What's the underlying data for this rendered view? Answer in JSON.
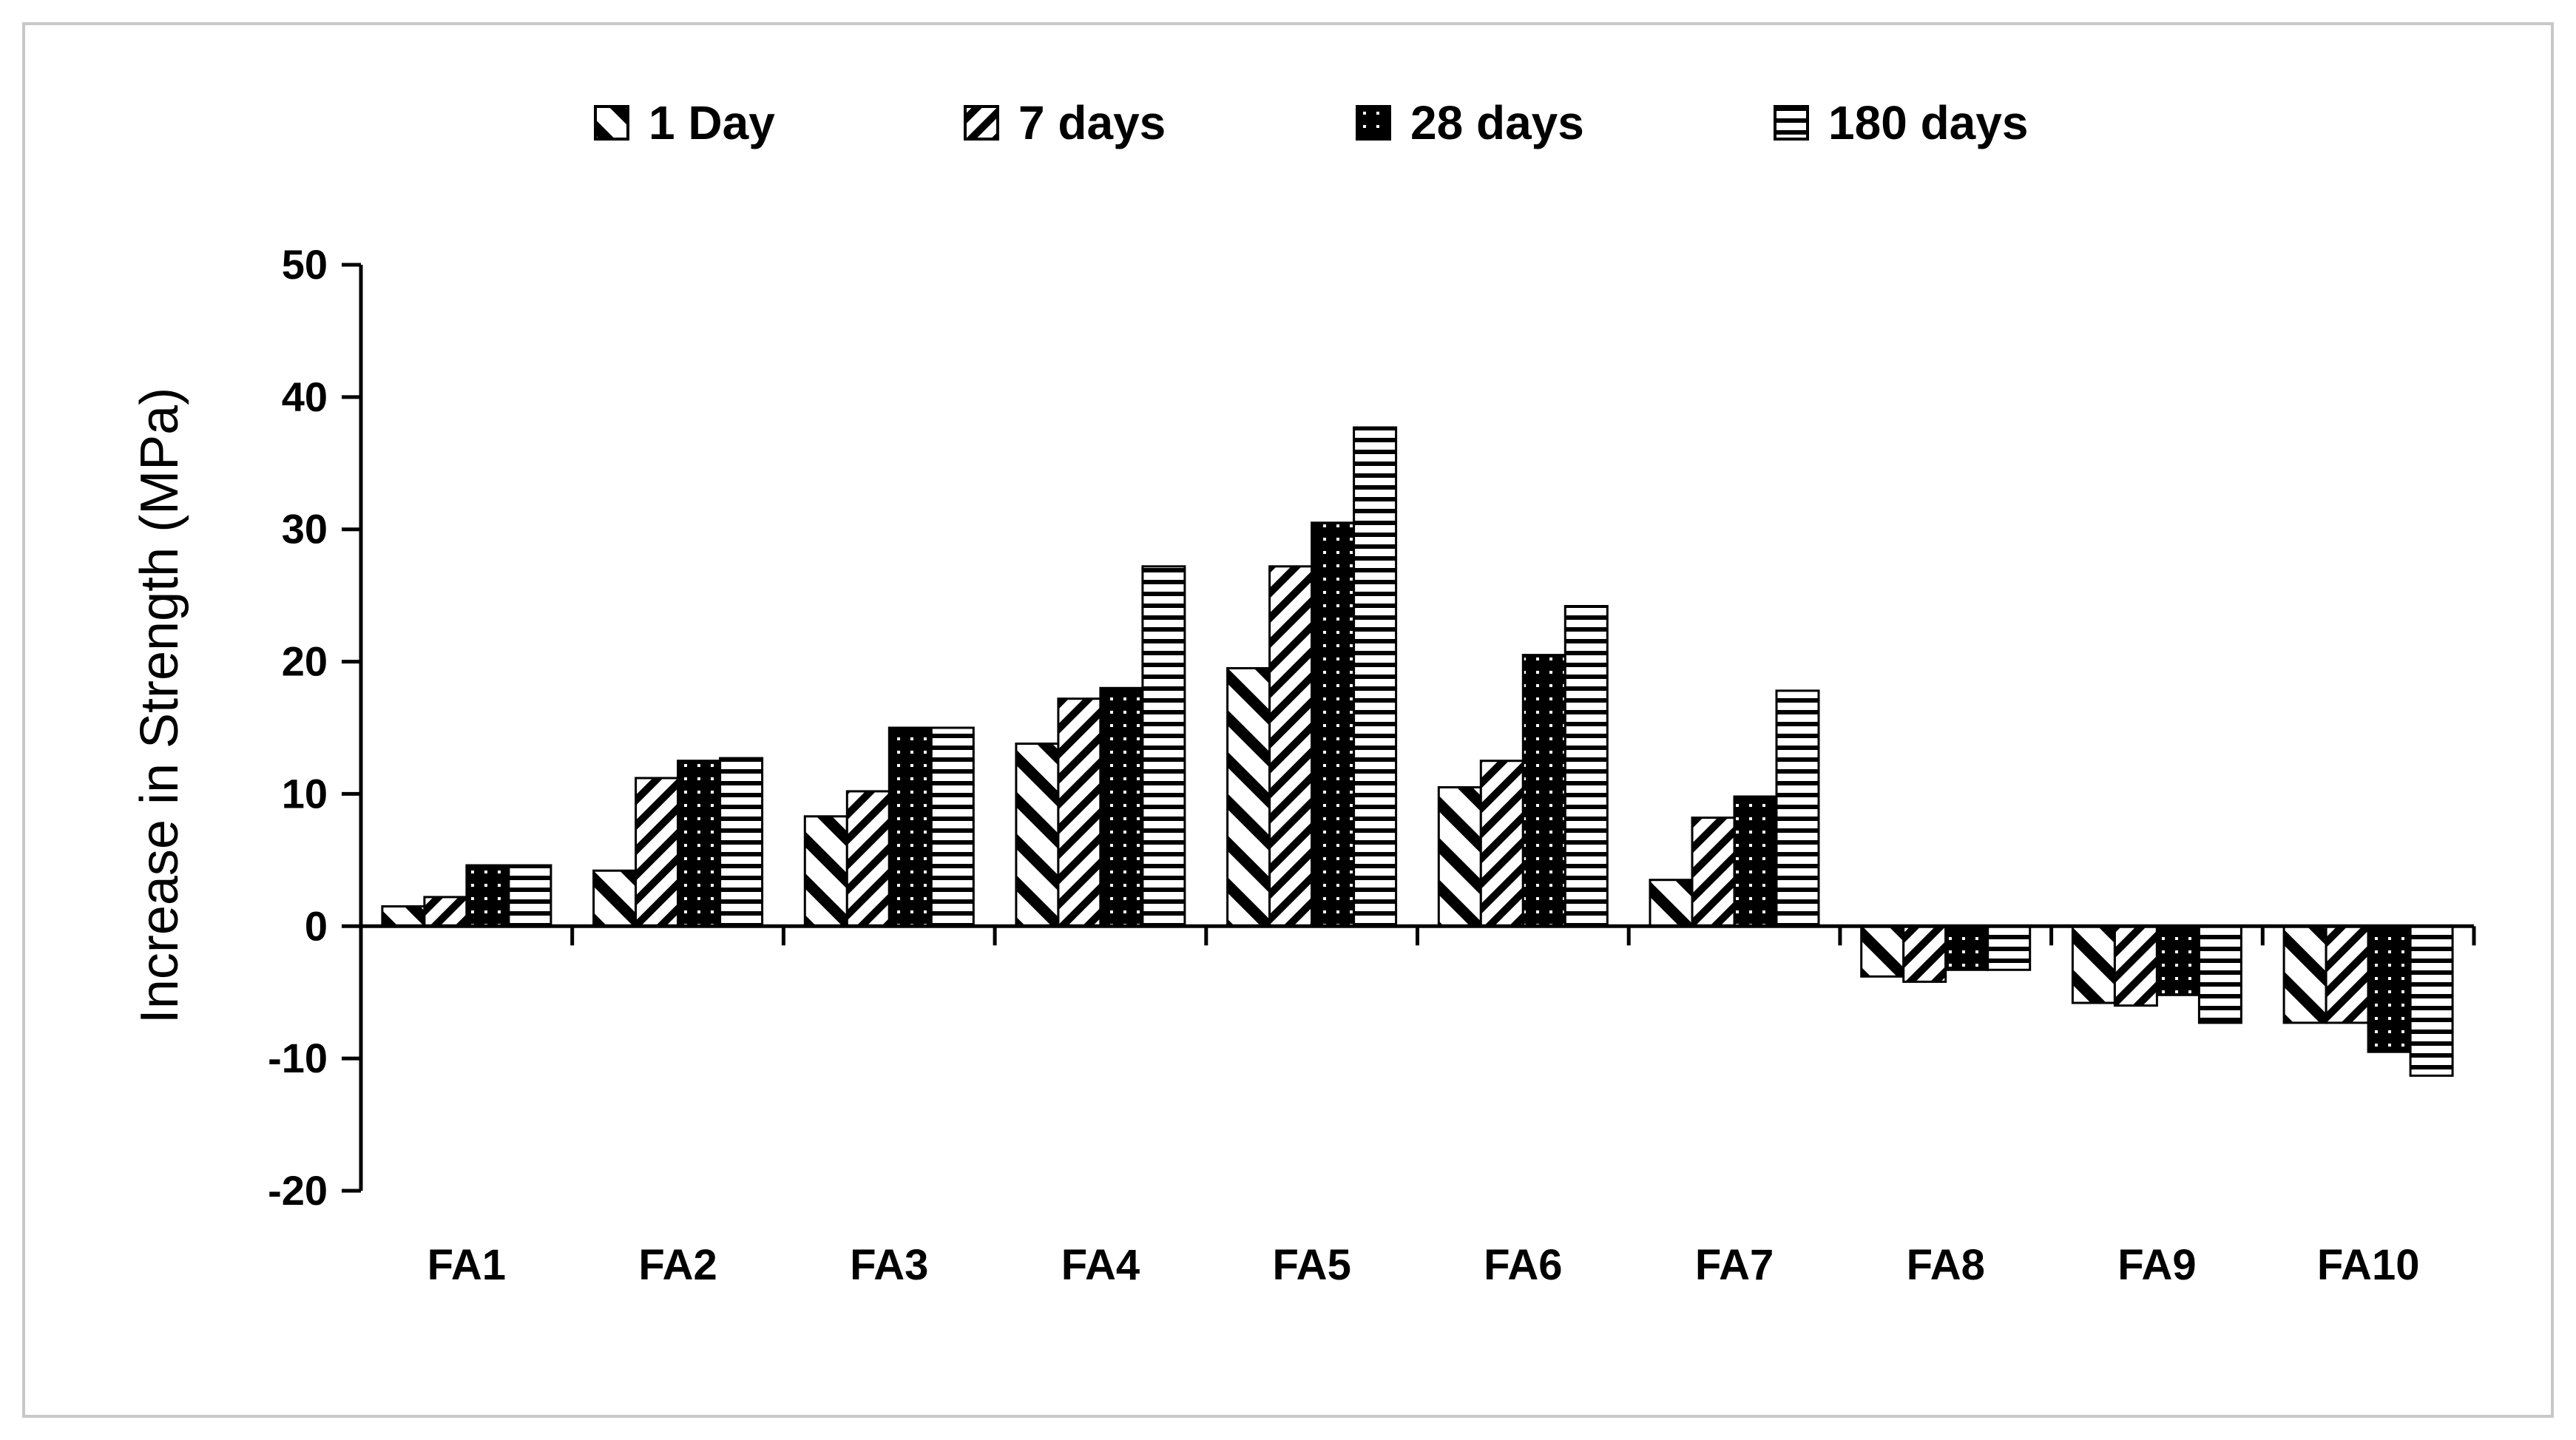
{
  "chart_data": {
    "type": "bar",
    "title": "",
    "xlabel": "",
    "ylabel": "Increase in Strength  (MPa)",
    "ylim": [
      -20,
      50
    ],
    "yticks": [
      50,
      40,
      30,
      20,
      10,
      0,
      -10,
      -20
    ],
    "ytick_labels": [
      "50",
      "40",
      "30",
      "20",
      "10",
      "0",
      "-10",
      "-20"
    ],
    "legend_position": "top",
    "grid": false,
    "categories": [
      "FA1",
      "FA2",
      "FA3",
      "FA4",
      "FA5",
      "FA6",
      "FA7",
      "FA8",
      "FA9",
      "FA10"
    ],
    "series": [
      {
        "name": "1 Day",
        "pattern": "backslash-hatch",
        "values": [
          1.5,
          4.2,
          8.3,
          13.8,
          19.5,
          10.5,
          3.5,
          -3.8,
          -5.8,
          -7.3
        ]
      },
      {
        "name": "7 days",
        "pattern": "slash-hatch",
        "values": [
          2.2,
          11.2,
          10.2,
          17.2,
          27.2,
          12.5,
          8.2,
          -4.2,
          -6.0,
          -7.3
        ]
      },
      {
        "name": "28 days",
        "pattern": "dotted-black",
        "values": [
          4.6,
          12.5,
          15.0,
          18.0,
          30.5,
          20.5,
          9.8,
          -3.3,
          -5.2,
          -9.5
        ]
      },
      {
        "name": "180 days",
        "pattern": "horizontal-lines",
        "values": [
          4.6,
          12.7,
          15.0,
          27.2,
          37.7,
          24.2,
          17.8,
          -3.3,
          -7.3,
          -11.3
        ]
      }
    ]
  },
  "colors": {
    "stroke": "#000000",
    "frame": "#c8c8c8",
    "background": "#ffffff"
  }
}
